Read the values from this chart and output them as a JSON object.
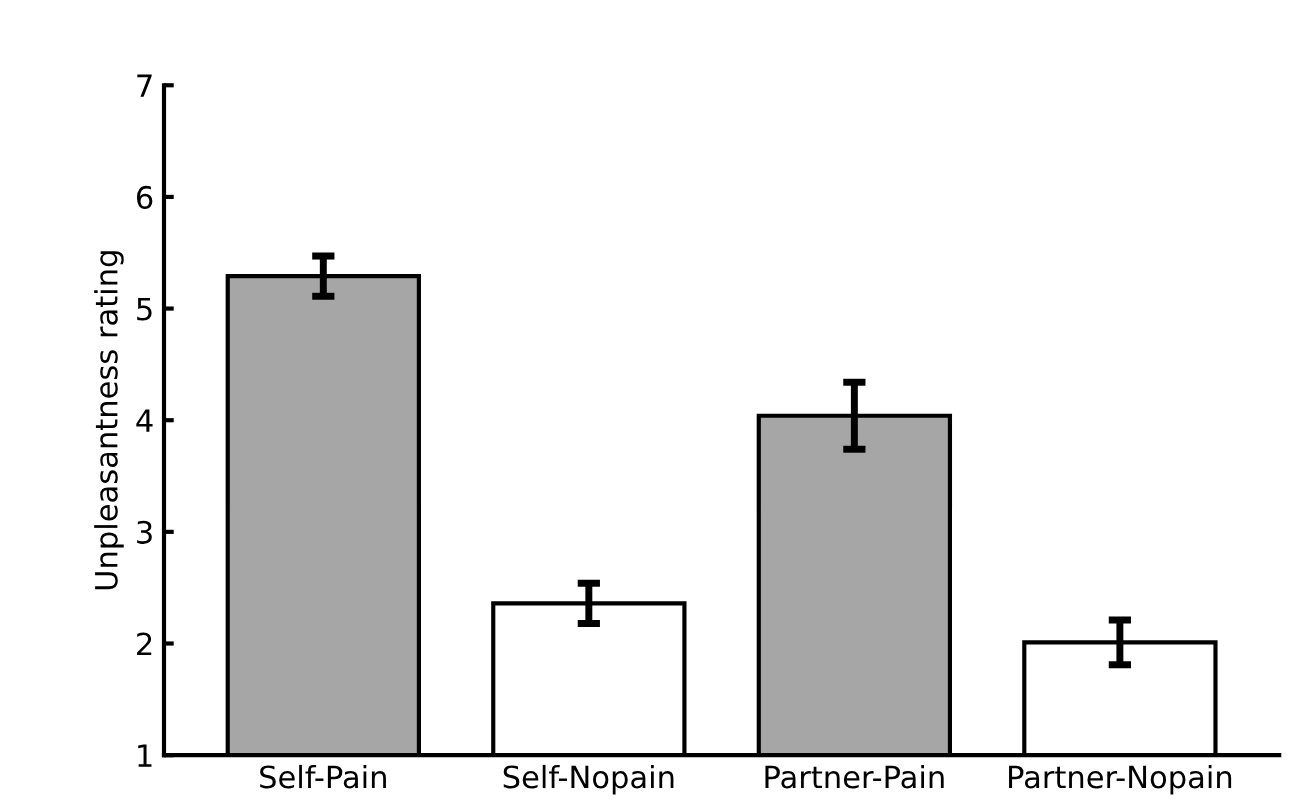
{
  "chart_data": {
    "type": "bar",
    "ylabel": "Unpleasantness rating",
    "categories": [
      "Self-Pain",
      "Self-Nopain",
      "Partner-Pain",
      "Partner-Nopain"
    ],
    "values": [
      5.29,
      2.36,
      4.04,
      2.01
    ],
    "errors": [
      0.18,
      0.18,
      0.3,
      0.2
    ],
    "colors": [
      "#a6a6a6",
      "#ffffff",
      "#a6a6a6",
      "#ffffff"
    ],
    "ylim": [
      1,
      7
    ],
    "yticks": [
      1,
      2,
      3,
      4,
      5,
      6,
      7
    ],
    "grid": false
  }
}
